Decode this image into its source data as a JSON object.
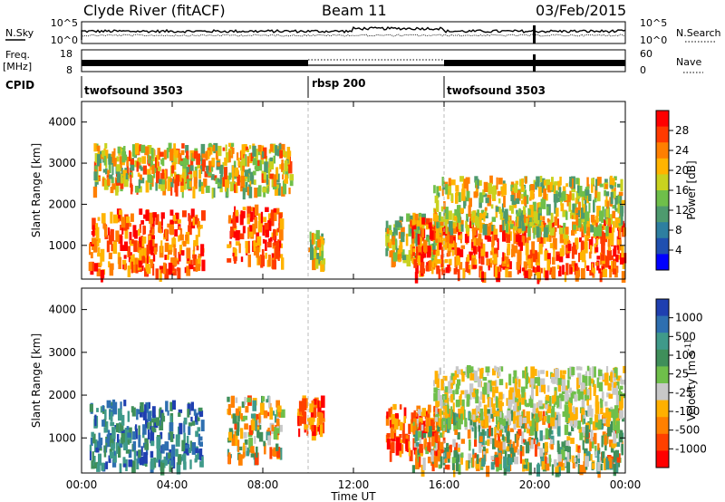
{
  "header": {
    "station": "Clyde River (fitACF)",
    "beam": "Beam 11",
    "date": "03/Feb/2015"
  },
  "strips": {
    "nsky_label": "N.Sky",
    "nsky_ticks": [
      "10^5",
      "10^0"
    ],
    "nsearch_label": "N.Search",
    "nsearch_ticks": [
      "10^5",
      "10^0"
    ],
    "freq_label_1": "Freq.",
    "freq_label_2": "[MHz]",
    "freq_ticks": [
      "18",
      "8"
    ],
    "nave_label": "Nave",
    "nave_ticks": [
      "60",
      "0"
    ],
    "cpid_label": "CPID"
  },
  "cpid_segments": [
    {
      "name": "twofsound 3503",
      "start_h": 0
    },
    {
      "name": "rbsp 200",
      "start_h": 10
    },
    {
      "name": "twofsound 3503",
      "start_h": 16
    }
  ],
  "chart_data": [
    {
      "type": "heatmap",
      "quantity": "Power",
      "ylabel": "Slant Range [km]",
      "xlabel": "Time UT",
      "xlim": [
        "00:00",
        "00:00"
      ],
      "x_ticks": [
        "00:00",
        "04:00",
        "08:00",
        "12:00",
        "16:00",
        "20:00",
        "00:00"
      ],
      "ylim": [
        180,
        4500
      ],
      "y_ticks": [
        1000,
        2000,
        3000,
        4000
      ],
      "colorbar": {
        "label": "Power [dB]",
        "ticks": [
          "4",
          "8",
          "12",
          "16",
          "20",
          "24",
          "28"
        ],
        "colors": [
          "#0000ff",
          "#1f4fb0",
          "#2e7fa0",
          "#4e9a6e",
          "#6fbf4a",
          "#c9d21f",
          "#ffb400",
          "#ff7f00",
          "#ff3a00",
          "#ff0000"
        ]
      },
      "bands": [
        {
          "t0": 0.3,
          "t1": 5.3,
          "r0": 400,
          "r1": 1900,
          "level": "high"
        },
        {
          "t0": 6.4,
          "t1": 8.8,
          "r0": 600,
          "r1": 2000,
          "level": "high"
        },
        {
          "t0": 10.0,
          "t1": 10.6,
          "r0": 600,
          "r1": 1400,
          "level": "mid"
        },
        {
          "t0": 13.4,
          "t1": 15.7,
          "r0": 700,
          "r1": 1800,
          "level": "mid"
        },
        {
          "t0": 14.5,
          "t1": 23.9,
          "r0": 350,
          "r1": 1700,
          "level": "high"
        },
        {
          "t0": 15.5,
          "t1": 23.9,
          "r0": 1400,
          "r1": 2700,
          "level": "mid"
        },
        {
          "t0": 0.5,
          "t1": 9.2,
          "r0": 2400,
          "r1": 3500,
          "level": "low"
        }
      ]
    },
    {
      "type": "heatmap",
      "quantity": "Velocity",
      "ylabel": "Slant Range [km]",
      "xlabel": "Time UT",
      "xlim": [
        "00:00",
        "00:00"
      ],
      "x_ticks": [
        "00:00",
        "04:00",
        "08:00",
        "12:00",
        "16:00",
        "20:00",
        "00:00"
      ],
      "ylim": [
        180,
        4500
      ],
      "y_ticks": [
        1000,
        2000,
        3000,
        4000
      ],
      "colorbar": {
        "label": "Velocity [m s^-1]",
        "ticks": [
          "1000",
          "500",
          "100",
          "25",
          "-25",
          "-100",
          "-500",
          "-1000"
        ],
        "colors": [
          "#1f3fb0",
          "#2e6fb0",
          "#3f9a8a",
          "#3f8f5a",
          "#6fbf4a",
          "#c8c8c8",
          "#ffb000",
          "#ff8000",
          "#ff4000",
          "#ff0000"
        ]
      },
      "bands": [
        {
          "t0": 0.3,
          "t1": 5.3,
          "r0": 400,
          "r1": 1900,
          "vel": "positive"
        },
        {
          "t0": 6.4,
          "t1": 8.8,
          "r0": 600,
          "r1": 2000,
          "vel": "mixed"
        },
        {
          "t0": 9.5,
          "t1": 10.6,
          "r0": 1200,
          "r1": 2000,
          "vel": "negative"
        },
        {
          "t0": 13.4,
          "t1": 15.7,
          "r0": 700,
          "r1": 1800,
          "vel": "negative"
        },
        {
          "t0": 14.5,
          "t1": 23.9,
          "r0": 350,
          "r1": 1700,
          "vel": "mixed"
        },
        {
          "t0": 15.5,
          "t1": 23.9,
          "r0": 1400,
          "r1": 2700,
          "vel": "small"
        }
      ]
    }
  ]
}
